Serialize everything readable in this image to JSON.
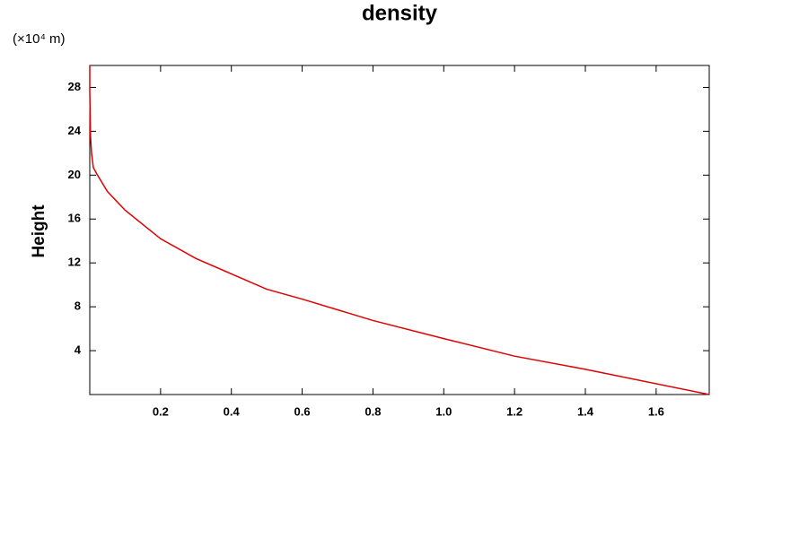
{
  "chart_data": {
    "type": "line",
    "title": "density",
    "y_label": "Height",
    "y_unit": "(×10⁴ m)",
    "x": [
      0,
      0,
      0.002,
      0.005,
      0.01,
      0.02,
      0.05,
      0.1,
      0.2,
      0.3,
      0.4,
      0.5,
      0.6,
      0.8,
      1.0,
      1.2,
      1.4,
      1.75
    ],
    "values": [
      30,
      27.7,
      23.6,
      22,
      20.7,
      20.1,
      18.5,
      16.8,
      14.2,
      12.4,
      11,
      9.6,
      8.7,
      6.75,
      5.1,
      3.5,
      2.3,
      0
    ],
    "color": "#e00000",
    "xlim": [
      0,
      1.75
    ],
    "ylim": [
      0,
      30
    ],
    "xticks": [
      0.2,
      0.4,
      0.6,
      0.8,
      {
        "value": 1,
        "label": "1.0"
      },
      1.2,
      1.4,
      1.6
    ],
    "yticks": [
      4,
      8,
      12,
      16,
      20,
      24,
      28
    ],
    "grid": false
  }
}
